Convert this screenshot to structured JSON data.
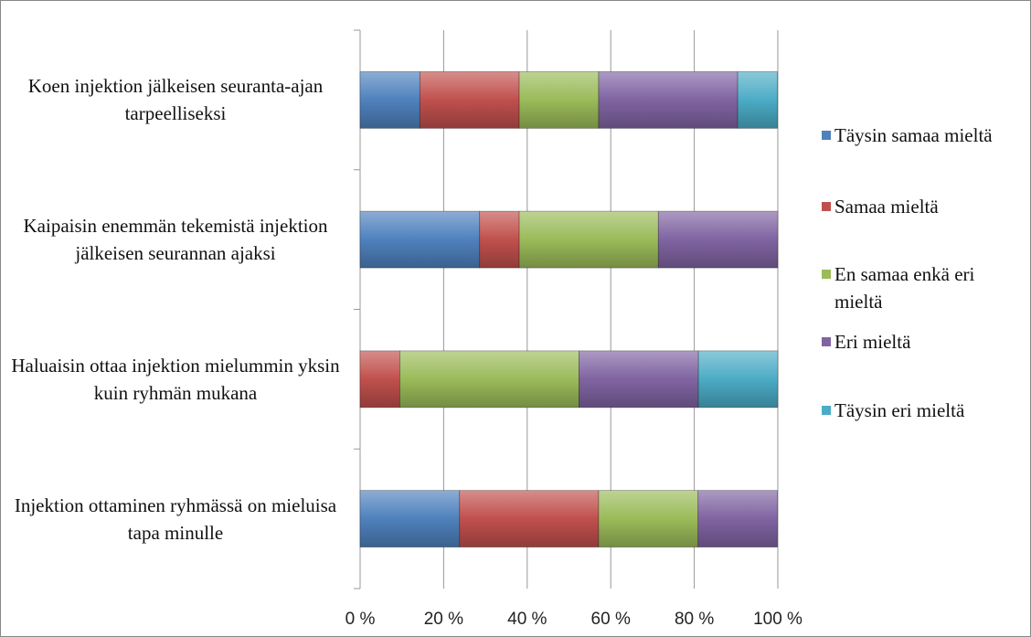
{
  "chart_data": {
    "type": "stacked_barh",
    "categories": [
      "Koen injektion jälkeisen seuranta-ajan tarpeelliseksi",
      "Kaipaisin enemmän tekemistä injektion jälkeisen seurannan ajaksi",
      "Haluaisin ottaa injektion mielummin yksin kuin ryhmän mukana",
      "Injektion ottaminen ryhmässä on mieluisa tapa minulle"
    ],
    "series": [
      {
        "name": "Täysin samaa mieltä",
        "color": "#4f81bd",
        "values": [
          14.3,
          28.6,
          0,
          23.8
        ]
      },
      {
        "name": "Samaa mieltä",
        "color": "#c0504d",
        "values": [
          23.8,
          9.5,
          9.5,
          33.3
        ]
      },
      {
        "name": "En samaa enkä eri mieltä",
        "color": "#9bbb59",
        "values": [
          19.0,
          33.3,
          42.9,
          23.8
        ]
      },
      {
        "name": "Eri mieltä",
        "color": "#8064a2",
        "values": [
          33.3,
          28.6,
          28.6,
          19.0
        ]
      },
      {
        "name": "Täysin eri mieltä",
        "color": "#4bacc6",
        "values": [
          9.5,
          0,
          19.0,
          0
        ]
      }
    ],
    "xlim": [
      0,
      100
    ],
    "xticks": [
      {
        "value": 0,
        "label": "0 %"
      },
      {
        "value": 20,
        "label": "20 %"
      },
      {
        "value": 40,
        "label": "40 %"
      },
      {
        "value": 60,
        "label": "60 %"
      },
      {
        "value": 80,
        "label": "80 %"
      },
      {
        "value": 100,
        "label": "100 %"
      }
    ],
    "grid": true
  }
}
